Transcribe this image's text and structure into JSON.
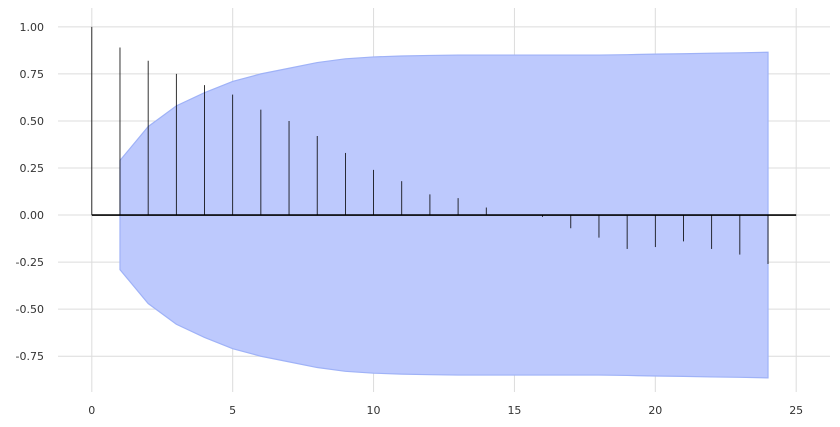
{
  "chart_data": {
    "type": "stem",
    "title": "",
    "xlabel": "",
    "ylabel": "",
    "xlim": [
      -1.2,
      26.2
    ],
    "ylim": [
      -0.94,
      1.1
    ],
    "xticks": [
      0,
      5,
      10,
      15,
      20,
      25
    ],
    "yticks": [
      -0.75,
      -0.5,
      -0.25,
      0.0,
      0.25,
      0.5,
      0.75,
      1.0
    ],
    "grid": true,
    "lags": [
      0,
      1,
      2,
      3,
      4,
      5,
      6,
      7,
      8,
      9,
      10,
      11,
      12,
      13,
      14,
      15,
      16,
      17,
      18,
      19,
      20,
      21,
      22,
      23,
      24
    ],
    "values": [
      1.0,
      0.89,
      0.82,
      0.75,
      0.69,
      0.64,
      0.56,
      0.5,
      0.42,
      0.33,
      0.24,
      0.18,
      0.11,
      0.09,
      0.04,
      0.0,
      -0.01,
      -0.07,
      -0.12,
      -0.18,
      -0.17,
      -0.14,
      -0.18,
      -0.21,
      -0.26
    ],
    "confidence_band": {
      "x": [
        1,
        2,
        3,
        4,
        5,
        6,
        7,
        8,
        9,
        10,
        11,
        12,
        13,
        14,
        15,
        16,
        17,
        18,
        19,
        20,
        21,
        22,
        23,
        24
      ],
      "upper": [
        0.29,
        0.47,
        0.58,
        0.65,
        0.71,
        0.75,
        0.78,
        0.81,
        0.83,
        0.84,
        0.845,
        0.848,
        0.85,
        0.85,
        0.85,
        0.85,
        0.85,
        0.85,
        0.852,
        0.855,
        0.857,
        0.86,
        0.862,
        0.865
      ],
      "lower": [
        -0.29,
        -0.47,
        -0.58,
        -0.65,
        -0.71,
        -0.75,
        -0.78,
        -0.81,
        -0.83,
        -0.84,
        -0.845,
        -0.848,
        -0.85,
        -0.85,
        -0.85,
        -0.85,
        -0.85,
        -0.85,
        -0.852,
        -0.855,
        -0.857,
        -0.86,
        -0.862,
        -0.865
      ]
    },
    "colors": {
      "band_fill": "#bdc9fd",
      "band_edge": "#9fb2f7",
      "stem": "#000000",
      "grid": "#dcdcdc"
    }
  }
}
